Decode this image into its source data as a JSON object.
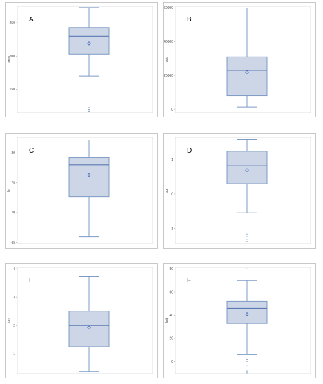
{
  "chart_data": [
    {
      "type": "box",
      "letter": "A",
      "ylabel": "sem",
      "ylim": [
        115,
        275
      ],
      "yticks": [
        150,
        200,
        250
      ],
      "box": {
        "whisker_low": 170,
        "q1": 203,
        "median": 230,
        "q3": 243,
        "whisker_high": 273,
        "mean": 219
      },
      "outliers": [
        121,
        118
      ]
    },
    {
      "type": "box",
      "letter": "B",
      "ylabel": "gdp",
      "ylim": [
        -2000,
        61000
      ],
      "yticks": [
        0,
        20000,
        40000,
        60000
      ],
      "box": {
        "whisker_low": 1200,
        "q1": 8000,
        "median": 23000,
        "q3": 31000,
        "whisker_high": 60000,
        "mean": 22000
      },
      "outliers": []
    },
    {
      "type": "box",
      "letter": "C",
      "ylabel": "le",
      "ylim": [
        64.8,
        82.6
      ],
      "yticks": [
        65,
        70,
        75,
        80
      ],
      "box": {
        "whisker_low": 66,
        "q1": 72.7,
        "median": 78,
        "q3": 79.2,
        "whisker_high": 82.2,
        "mean": 76.3
      },
      "outliers": []
    },
    {
      "type": "box",
      "letter": "D",
      "ylabel": "pgr",
      "ylim": [
        -1.45,
        1.65
      ],
      "yticks": [
        -1,
        0,
        1
      ],
      "box": {
        "whisker_low": -0.55,
        "q1": 0.3,
        "median": 0.82,
        "q3": 1.25,
        "whisker_high": 1.6,
        "mean": 0.7
      },
      "outliers": [
        -1.2,
        -1.36
      ]
    },
    {
      "type": "box",
      "letter": "E",
      "ylabel": "fpm",
      "ylim": [
        0.3,
        4.05
      ],
      "yticks": [
        1,
        2,
        3,
        4
      ],
      "box": {
        "whisker_low": 0.38,
        "q1": 1.25,
        "median": 2,
        "q3": 2.5,
        "whisker_high": 3.72,
        "mean": 1.92
      },
      "outliers": []
    },
    {
      "type": "box",
      "letter": "F",
      "ylabel": "lait",
      "ylim": [
        -10.5,
        81.5
      ],
      "yticks": [
        0,
        20,
        40,
        60,
        80
      ],
      "box": {
        "whisker_low": 6,
        "q1": 33,
        "median": 46,
        "q3": 52,
        "whisker_high": 70,
        "mean": 41
      },
      "outliers": [
        81,
        1,
        -4,
        -9
      ]
    }
  ],
  "colors": {
    "box_fill": "#ccd6e6",
    "box_line": "#7d9bc6",
    "median_line": "#5b79b4",
    "mean_marker": "#4a6ec2",
    "panel_border": "#c8c8c8",
    "frame_line": "#d8d8d8"
  }
}
